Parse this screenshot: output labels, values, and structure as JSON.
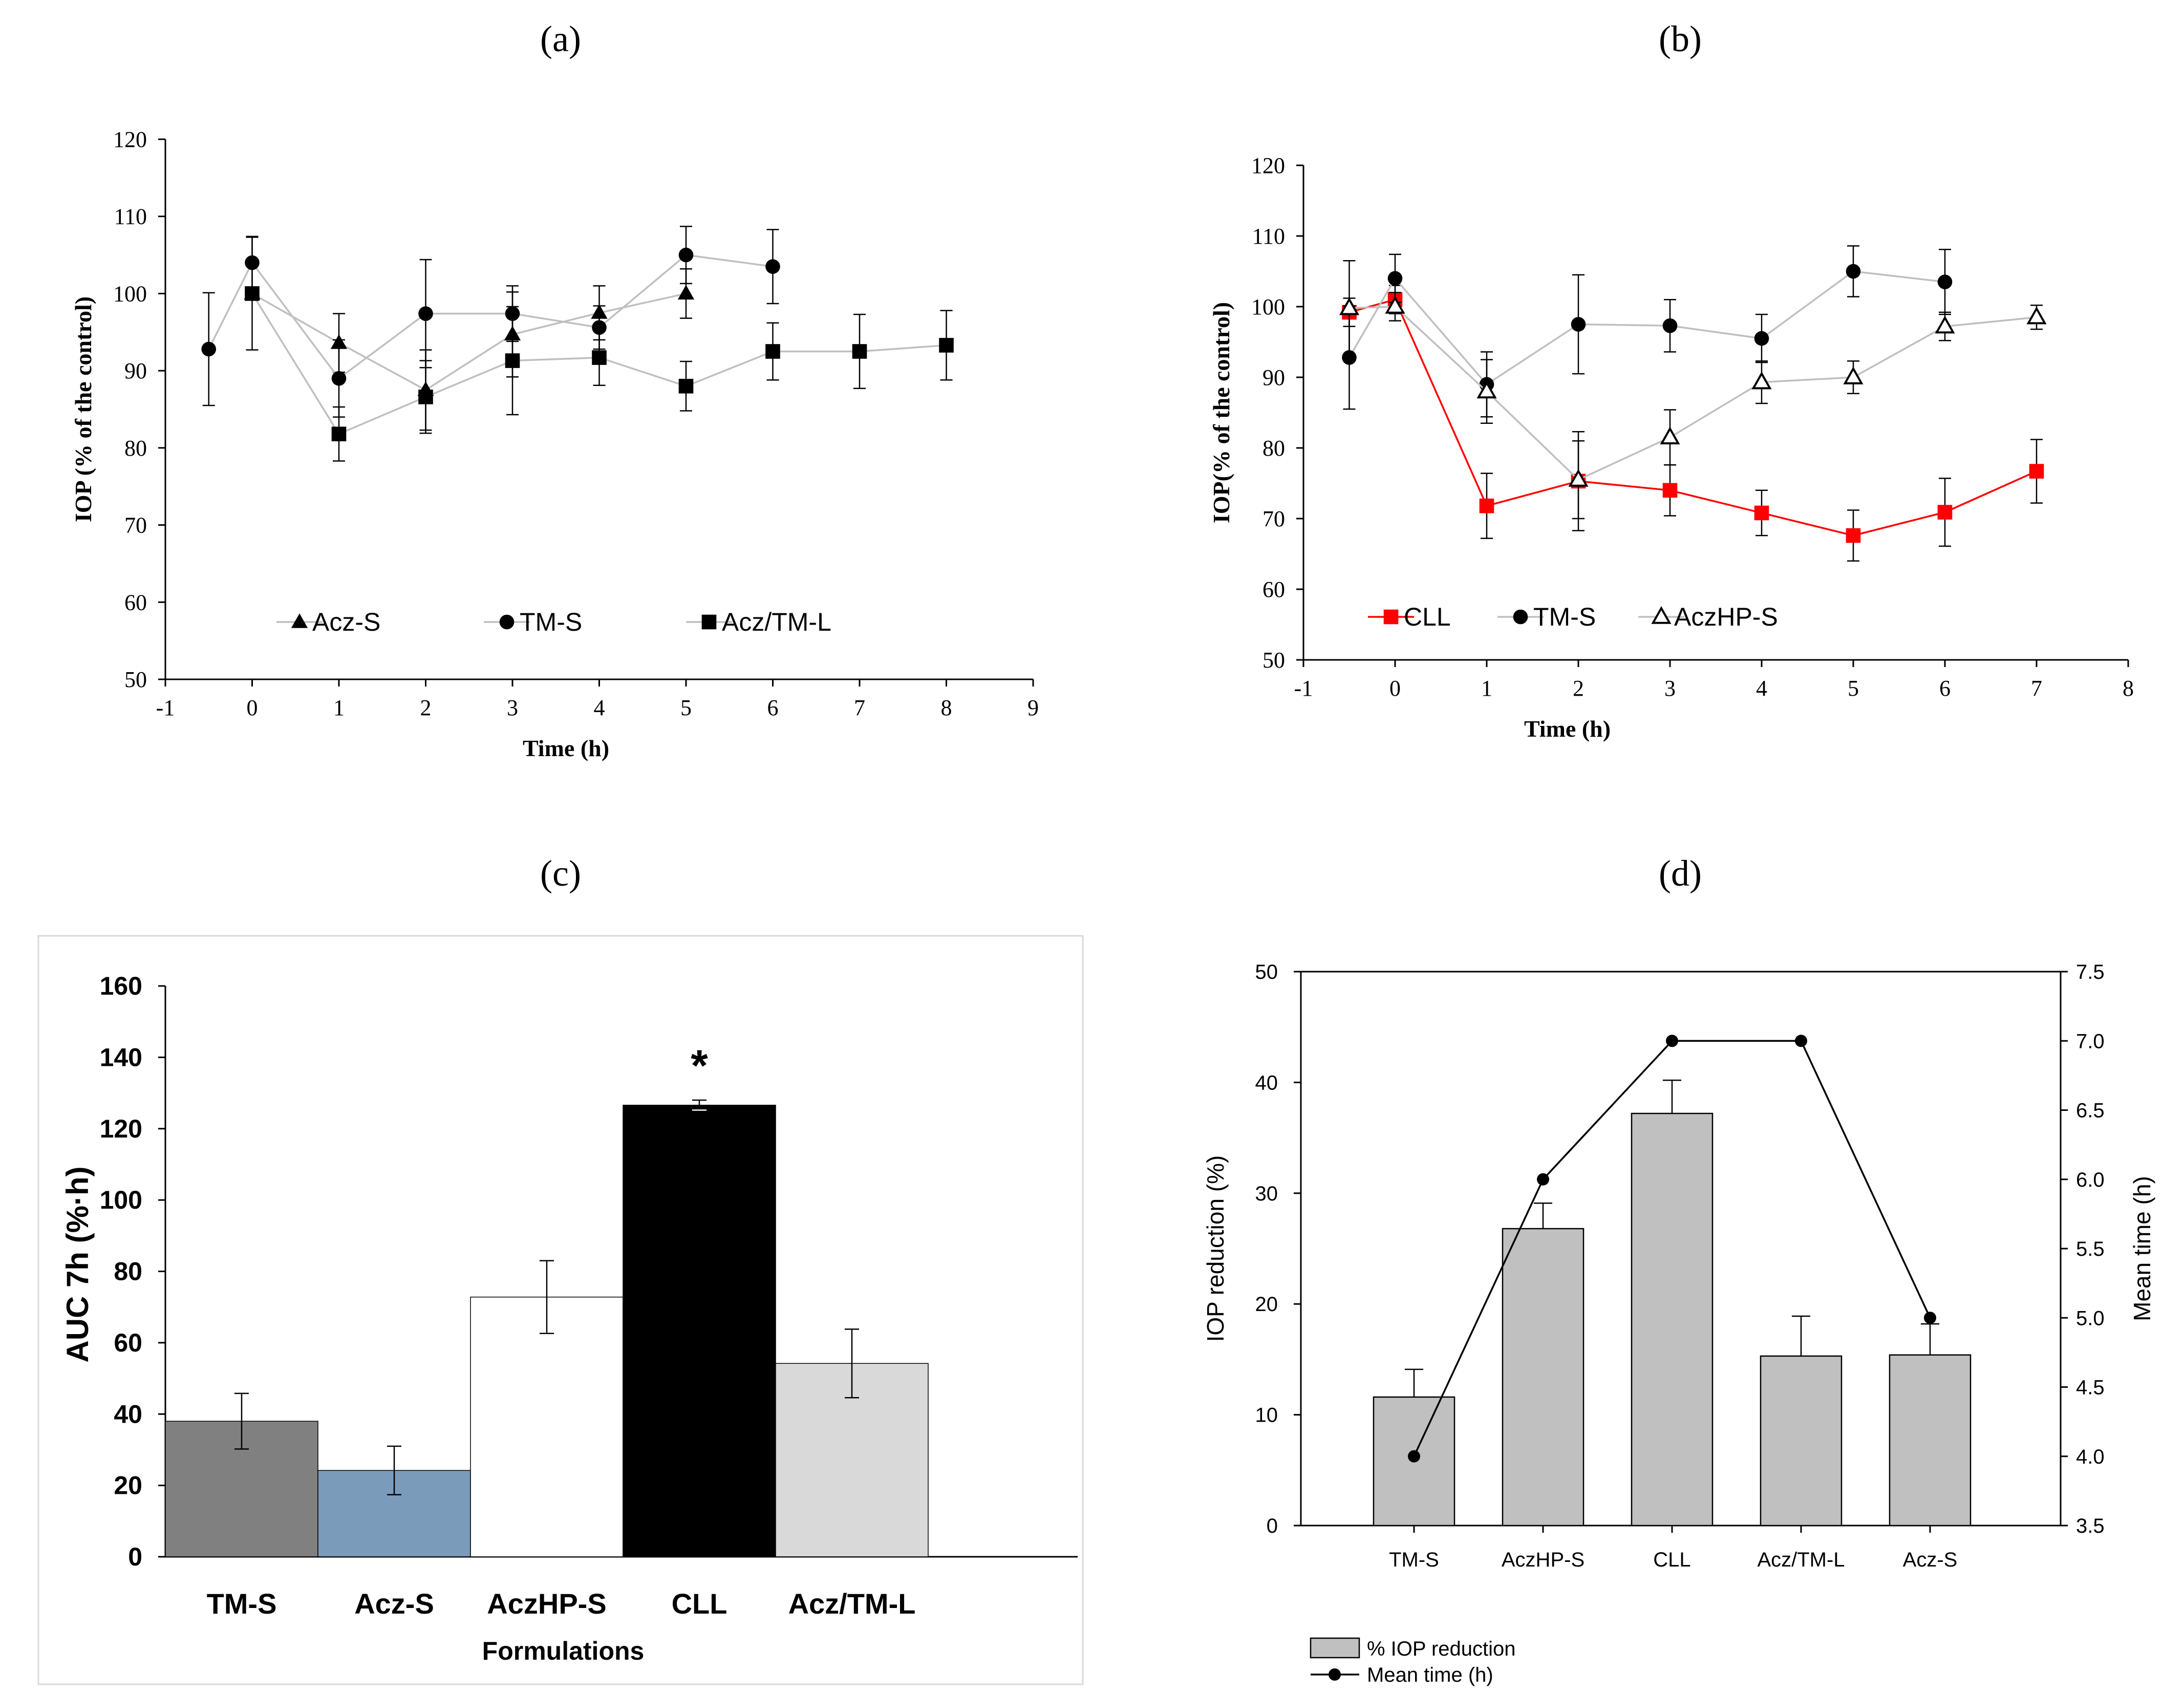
{
  "panels": [
    {
      "id": "a",
      "label": "(a)"
    },
    {
      "id": "b",
      "label": "(b)"
    },
    {
      "id": "c",
      "label": "(c)"
    },
    {
      "id": "d",
      "label": "(d)"
    }
  ],
  "chart_data": [
    {
      "panel": "a",
      "type": "line",
      "title": "",
      "xlabel": "Time (h)",
      "ylabel": "IOP (% of the control)",
      "xlim": [
        -1,
        9
      ],
      "ylim": [
        50,
        120
      ],
      "xticks": [
        -1,
        0,
        1,
        2,
        3,
        4,
        5,
        6,
        7,
        8,
        9
      ],
      "yticks": [
        50,
        60,
        70,
        80,
        90,
        100,
        110,
        120
      ],
      "legend_position": "bottom-inside",
      "grid": false,
      "series": [
        {
          "name": "Acz-S",
          "marker": "triangle",
          "color": "#000000",
          "line_color": "#bfbfbf",
          "x": [
            0,
            1,
            2,
            3,
            4,
            5
          ],
          "y": [
            100,
            93.6,
            87.5,
            94.7,
            97.5,
            100
          ],
          "err": [
            0,
            3.8,
            5.2,
            5.5,
            3.5,
            3.2
          ]
        },
        {
          "name": "TM-S",
          "marker": "circle",
          "color": "#000000",
          "line_color": "#bfbfbf",
          "x": [
            -0.5,
            0,
            1,
            2,
            3,
            4,
            5,
            6
          ],
          "y": [
            92.8,
            104,
            89,
            97.4,
            97.4,
            95.6,
            105,
            103.5
          ],
          "err": [
            7.3,
            3.4,
            5,
            7,
            3.6,
            2.8,
            3.7,
            4.8
          ]
        },
        {
          "name": "Acz/TM-L",
          "marker": "square",
          "color": "#000000",
          "line_color": "#bfbfbf",
          "x": [
            0,
            1,
            2,
            3,
            4,
            5,
            6,
            7,
            8
          ],
          "y": [
            100,
            81.8,
            86.6,
            91.3,
            91.7,
            88,
            92.5,
            92.5,
            93.3
          ],
          "err": [
            7.3,
            3.5,
            4.7,
            7,
            3.6,
            3.2,
            3.7,
            4.8,
            4.5
          ]
        }
      ]
    },
    {
      "panel": "b",
      "type": "line",
      "title": "",
      "xlabel": "Time (h)",
      "ylabel": "IOP(% of the control)",
      "xlim": [
        -1,
        8
      ],
      "ylim": [
        50,
        120
      ],
      "xticks": [
        -1,
        0,
        1,
        2,
        3,
        4,
        5,
        6,
        7,
        8
      ],
      "yticks": [
        50,
        60,
        70,
        80,
        90,
        100,
        110,
        120
      ],
      "legend_position": "bottom-inside",
      "grid": false,
      "series": [
        {
          "name": "CLL",
          "marker": "square",
          "color": "#ff0000",
          "line_color": "#ff0000",
          "x": [
            -0.5,
            0,
            1,
            2,
            3,
            4,
            5,
            6,
            7
          ],
          "y": [
            99.2,
            101,
            71.8,
            75.3,
            74,
            70.8,
            67.6,
            70.9,
            76.7
          ],
          "err": [
            2,
            2,
            4.6,
            7,
            3.6,
            3.2,
            3.6,
            4.8,
            4.5
          ]
        },
        {
          "name": "TM-S",
          "marker": "circle",
          "color": "#000000",
          "line_color": "#bfbfbf",
          "x": [
            -0.5,
            0,
            1,
            2,
            3,
            4,
            5,
            6
          ],
          "y": [
            92.8,
            104,
            89,
            97.5,
            97.3,
            95.5,
            105,
            103.5
          ],
          "err": [
            7.3,
            3.4,
            4.6,
            7,
            3.7,
            3.4,
            3.6,
            4.6
          ]
        },
        {
          "name": "AczHP-S",
          "marker": "triangle-open",
          "color": "#000000",
          "line_color": "#bfbfbf",
          "x": [
            -0.5,
            0,
            1,
            2,
            3,
            4,
            5,
            6,
            7
          ],
          "y": [
            99.8,
            100,
            88,
            75.5,
            81.5,
            89.3,
            90,
            97.2,
            98.5
          ],
          "err": [
            6.7,
            2,
            4.5,
            5.5,
            3.9,
            3,
            2.3,
            2,
            1.7
          ]
        }
      ]
    },
    {
      "panel": "c",
      "type": "bar",
      "title": "",
      "xlabel": "Formulations",
      "ylabel": "AUC 7h (%·h)",
      "ylim": [
        0,
        160
      ],
      "yticks": [
        0,
        20,
        40,
        60,
        80,
        100,
        120,
        140,
        160
      ],
      "grid": false,
      "categories": [
        "TM-S",
        "Acz-S",
        "AczHP-S",
        "CLL",
        "Acz/TM-L"
      ],
      "values": [
        38,
        24.2,
        72.8,
        126.6,
        54.2
      ],
      "err": [
        7.8,
        6.8,
        10.2,
        1.4,
        9.6
      ],
      "colors": [
        "#808080",
        "#7b9bbb",
        "#ffffff",
        "#000000",
        "#d9d9d9"
      ],
      "annotations": [
        {
          "category": "CLL",
          "text": "*"
        }
      ]
    },
    {
      "panel": "d",
      "type": "bar",
      "title": "",
      "categories": [
        "TM-S",
        "AczHP-S",
        "CLL",
        "Acz/TM-L",
        "Acz-S"
      ],
      "ylabel": "IOP reduction (%)",
      "y2label": "Mean time (h)",
      "ylim": [
        0,
        50
      ],
      "y2lim": [
        3.5,
        7.5
      ],
      "yticks": [
        0,
        10,
        20,
        30,
        40,
        50
      ],
      "y2ticks": [
        "3.5",
        "4.0",
        "4.5",
        "5.0",
        "5.5",
        "6.0",
        "6.5",
        "7.0",
        "7.5"
      ],
      "grid": false,
      "legend_position": "bottom-left-outside",
      "series": [
        {
          "name": "% IOP reduction",
          "type": "bar",
          "axis": "left",
          "color": "#c0c0c0",
          "values": [
            11.6,
            26.8,
            37.2,
            15.3,
            15.4
          ],
          "err": [
            2.5,
            2.3,
            3,
            3.6,
            2.8
          ]
        },
        {
          "name": "Mean time (h)",
          "type": "line",
          "axis": "right",
          "color": "#000000",
          "values": [
            4,
            6,
            7,
            7,
            5
          ]
        }
      ]
    }
  ]
}
